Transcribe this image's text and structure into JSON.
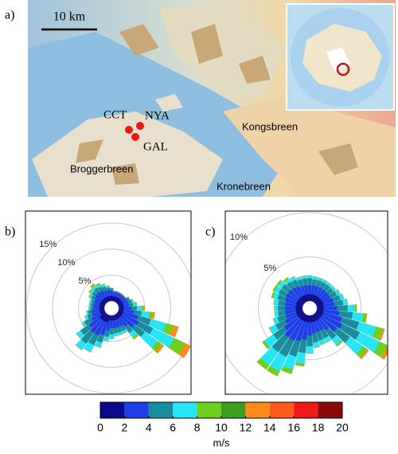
{
  "map": {
    "label": "a)",
    "scale": "10 km",
    "sites": [
      "CCT",
      "NYA",
      "GAL"
    ],
    "glaciers": [
      "Kongsbreen",
      "Broggerbreen",
      "Kronebreen"
    ]
  },
  "chart_data": [
    {
      "type": "windrose",
      "label": "b)",
      "x": [
        0,
        10,
        20,
        30,
        40,
        50,
        60,
        70,
        80,
        90,
        100,
        110,
        120,
        130,
        140,
        150,
        160,
        170,
        180,
        190,
        200,
        210,
        220,
        230,
        240,
        250,
        260,
        270,
        280,
        290,
        300,
        310,
        320,
        330,
        340,
        350
      ],
      "rlim": [
        0,
        17
      ],
      "rticks": [
        {
          "value": 5,
          "label": "5%"
        },
        {
          "value": 10,
          "label": "10%"
        },
        {
          "value": 15,
          "label": "15%"
        }
      ],
      "series": [
        {
          "color": "#0a0a8a",
          "values": [
            1,
            1,
            1,
            1,
            1,
            1,
            1,
            1,
            1,
            1,
            1,
            1,
            1,
            1,
            1,
            1,
            1,
            1,
            1,
            1,
            1.5,
            1.5,
            1.5,
            1.5,
            1,
            1,
            1,
            1,
            1,
            1,
            1,
            1,
            1,
            1,
            1,
            1
          ]
        },
        {
          "color": "#1e3ee6",
          "values": [
            1,
            0.8,
            0.8,
            0.8,
            0.8,
            0.8,
            1,
            1,
            1,
            1.5,
            2,
            3,
            3.5,
            3,
            2,
            1.5,
            1.5,
            1.5,
            1.5,
            2,
            2.5,
            3,
            3,
            2.5,
            2,
            1.5,
            1.5,
            1.2,
            1.2,
            1.2,
            1.2,
            1.5,
            1.5,
            1.5,
            1.2,
            1.2
          ]
        },
        {
          "color": "#1a8c9c",
          "values": [
            0.5,
            0.2,
            0.2,
            0.2,
            0.2,
            0.2,
            0.5,
            0.7,
            0.8,
            1,
            1.5,
            2.5,
            3,
            2.5,
            1.5,
            1,
            1,
            1,
            1.2,
            1.2,
            1.5,
            2,
            2.5,
            2,
            1.5,
            1,
            0.7,
            0.5,
            0.5,
            0.5,
            0.8,
            0.8,
            1,
            0.8,
            0.8,
            0.5
          ]
        },
        {
          "color": "#28e4f4",
          "values": [
            0,
            0,
            0,
            0,
            0,
            0,
            0,
            0.3,
            0.5,
            1,
            1.5,
            3,
            4.5,
            3,
            1,
            0.5,
            0.5,
            0.5,
            0.8,
            0.8,
            1,
            1.5,
            1.5,
            1,
            0.5,
            0.5,
            0.3,
            0.3,
            0.3,
            0.3,
            0.3,
            0.4,
            0.5,
            0.4,
            0.3,
            0.3
          ]
        },
        {
          "color": "#6fcf1f",
          "values": [
            0,
            0,
            0,
            0,
            0,
            0,
            0,
            0,
            0.2,
            0.3,
            0.5,
            1.5,
            2.3,
            1,
            0.5,
            0,
            0,
            0,
            0,
            0,
            0,
            0,
            0,
            0,
            0,
            0,
            0,
            0,
            0,
            0,
            0.2,
            0.3,
            0.3,
            0.3,
            0.2,
            0
          ]
        },
        {
          "color": "#ff8a1c",
          "values": [
            0,
            0,
            0,
            0,
            0,
            0,
            0,
            0,
            0,
            0.2,
            0.5,
            1,
            1.2,
            0.5,
            0,
            0,
            0,
            0,
            0,
            0,
            0,
            0,
            0,
            0,
            0,
            0,
            0,
            0,
            0,
            0,
            0,
            0,
            0.2,
            0,
            0,
            0
          ]
        }
      ]
    },
    {
      "type": "windrose",
      "label": "c)",
      "x": [
        0,
        10,
        20,
        30,
        40,
        50,
        60,
        70,
        80,
        90,
        100,
        110,
        120,
        130,
        140,
        150,
        160,
        170,
        180,
        190,
        200,
        210,
        220,
        230,
        240,
        250,
        260,
        270,
        280,
        290,
        300,
        310,
        320,
        330,
        340,
        350
      ],
      "rlim": [
        0,
        10
      ],
      "rticks": [
        {
          "value": 5,
          "label": "5%"
        },
        {
          "value": 10,
          "label": "10%"
        }
      ],
      "series": [
        {
          "color": "#0a0a8a",
          "values": [
            0.8,
            0.8,
            0.8,
            0.8,
            0.8,
            0.8,
            0.8,
            0.8,
            0.8,
            0.8,
            0.8,
            0.8,
            0.8,
            0.8,
            0.8,
            0.8,
            0.8,
            0.8,
            0.8,
            0.8,
            0.8,
            0.8,
            0.8,
            0.8,
            0.8,
            0.8,
            0.8,
            0.8,
            0.8,
            0.8,
            0.8,
            0.8,
            0.8,
            0.8,
            0.8,
            0.8
          ]
        },
        {
          "color": "#1e3ee6",
          "values": [
            1,
            1,
            1,
            1,
            1,
            1,
            1,
            1.2,
            1.2,
            1.5,
            1.8,
            2.2,
            2.5,
            2.2,
            1.5,
            1.2,
            1.2,
            1.3,
            1.5,
            2,
            2.3,
            2.5,
            2.5,
            2,
            1.5,
            1.2,
            1.2,
            1.2,
            1.2,
            1.3,
            1.4,
            1.4,
            1.3,
            1.2,
            1,
            1
          ]
        },
        {
          "color": "#1a8c9c",
          "values": [
            0.8,
            0.7,
            0.7,
            0.7,
            0.7,
            0.7,
            0.8,
            0.8,
            1,
            1.2,
            1.5,
            2,
            2.2,
            1.8,
            1.2,
            1,
            1,
            1,
            1.2,
            1.5,
            1.8,
            2,
            2,
            1.5,
            1.2,
            1,
            0.8,
            0.8,
            0.8,
            0.9,
            0.9,
            0.9,
            0.8,
            0.8,
            0.8,
            0.8
          ]
        },
        {
          "color": "#28e4f4",
          "values": [
            0.3,
            0.3,
            0.3,
            0.3,
            0.3,
            0.3,
            0.4,
            0.4,
            0.5,
            0.8,
            1.2,
            2,
            2.5,
            1.8,
            0.8,
            0.5,
            0.5,
            0.6,
            0.8,
            1.2,
            1.5,
            1.8,
            1.8,
            1.2,
            0.8,
            0.5,
            0.4,
            0.4,
            0.5,
            0.5,
            0.5,
            0.5,
            0.4,
            0.4,
            0.3,
            0.3
          ]
        },
        {
          "color": "#6fcf1f",
          "values": [
            0,
            0,
            0,
            0,
            0,
            0,
            0,
            0,
            0,
            0.2,
            0.4,
            0.8,
            1,
            0.6,
            0.2,
            0,
            0,
            0,
            0,
            0.3,
            0.5,
            0.6,
            0.6,
            0.3,
            0,
            0,
            0,
            0,
            0,
            0.2,
            0.2,
            0.2,
            0.2,
            0,
            0,
            0
          ]
        },
        {
          "color": "#ff8a1c",
          "values": [
            0,
            0,
            0,
            0,
            0,
            0,
            0,
            0,
            0,
            0,
            0,
            0.2,
            0.4,
            0.2,
            0,
            0,
            0,
            0,
            0,
            0,
            0,
            0,
            0,
            0,
            0,
            0,
            0,
            0,
            0,
            0,
            0,
            0,
            0,
            0,
            0,
            0
          ]
        }
      ]
    }
  ],
  "colorbar": {
    "ticks": [
      0,
      2,
      4,
      6,
      8,
      10,
      12,
      14,
      16,
      18,
      20
    ],
    "label": "m/s",
    "colors": [
      "#0a0a8a",
      "#1e3ee6",
      "#1a8c9c",
      "#28e4f4",
      "#6fcf1f",
      "#3c9e1c",
      "#ff8a1c",
      "#ff5a1e",
      "#f01818",
      "#8a0a0a"
    ]
  }
}
